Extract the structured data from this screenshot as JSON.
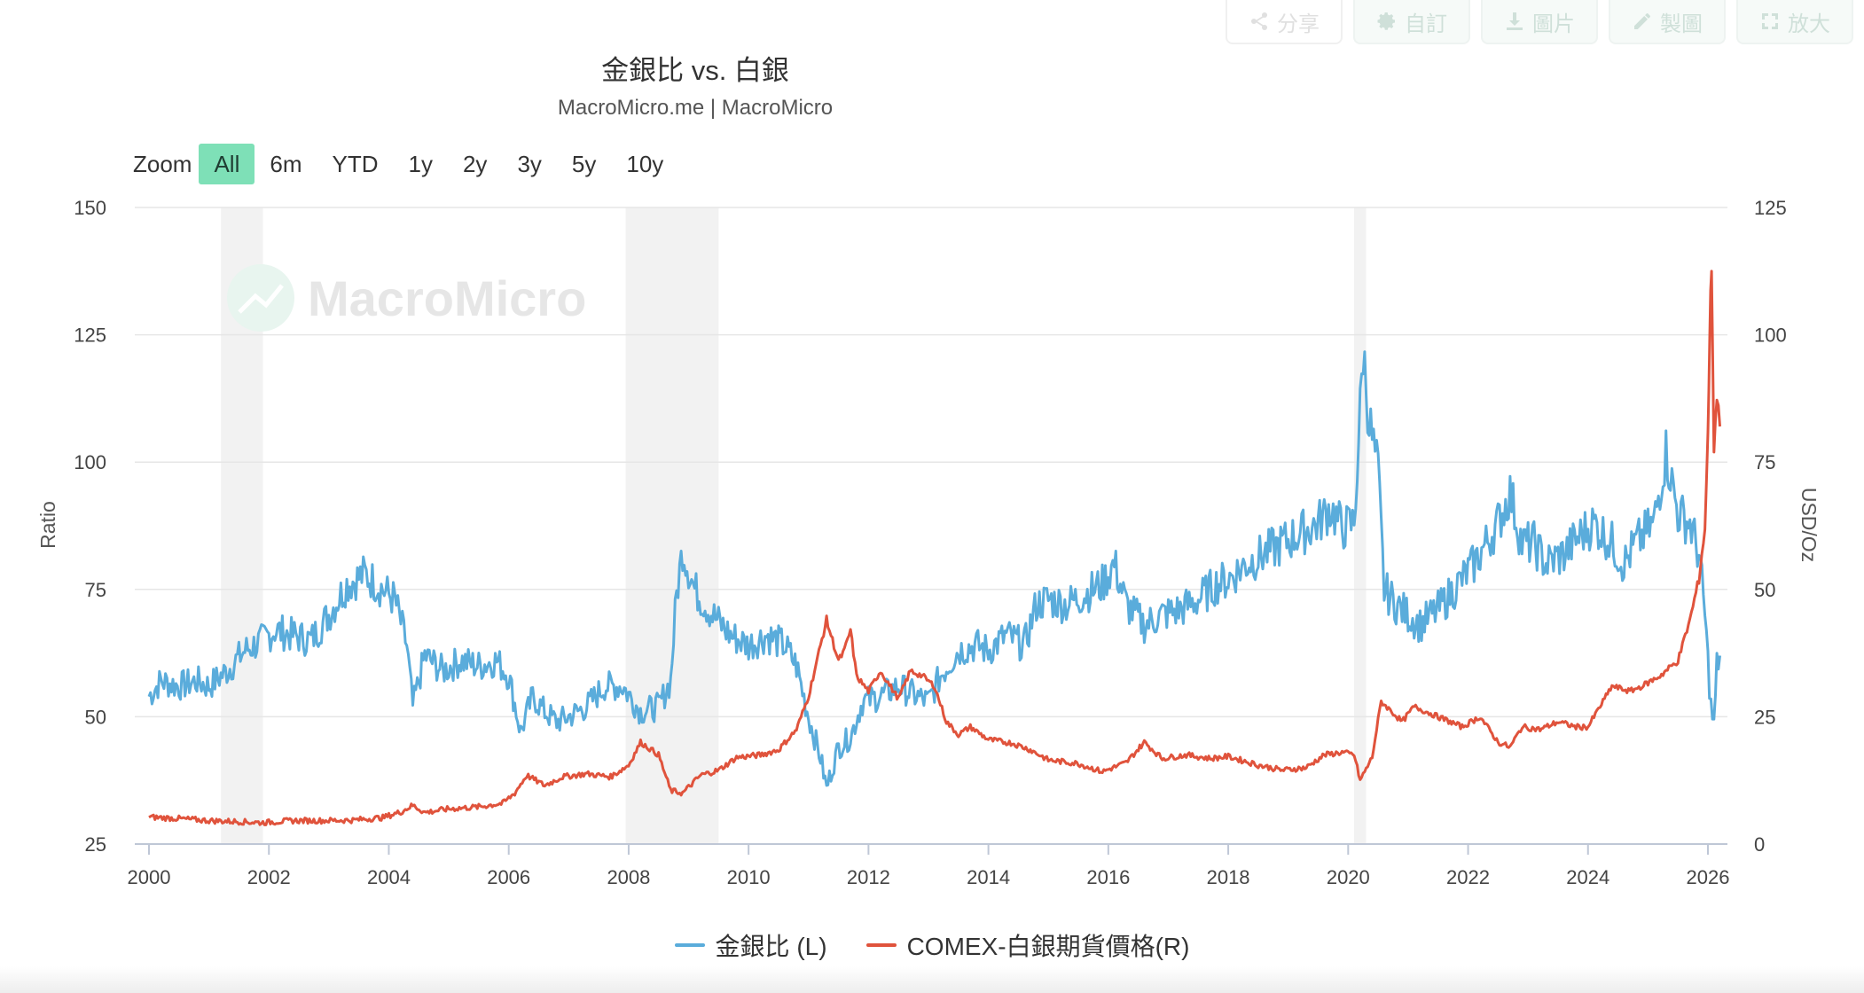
{
  "toolbar": {
    "share": {
      "label": "分享",
      "icon": "share-icon"
    },
    "customize": {
      "label": "自訂",
      "icon": "gear-icon"
    },
    "image": {
      "label": "圖片",
      "icon": "download-icon"
    },
    "draw": {
      "label": "製圖",
      "icon": "pencil-icon"
    },
    "expand": {
      "label": "放大",
      "icon": "expand-icon"
    }
  },
  "zoom": {
    "label": "Zoom",
    "options": [
      "All",
      "6m",
      "YTD",
      "1y",
      "2y",
      "3y",
      "5y",
      "10y"
    ],
    "selected": "All"
  },
  "watermark": "MacroMicro",
  "colors": {
    "ratio": "#5aacdb",
    "silver": "#e0533c",
    "recession_band": "#f2f2f2",
    "grid": "#e6e6e6",
    "zoom_active": "#7ee0b7"
  },
  "chart_data": {
    "type": "line",
    "title": "金銀比 vs. 白銀",
    "subtitle": "MacroMicro.me | MacroMicro",
    "x_ticks": [
      "2000",
      "2002",
      "2004",
      "2006",
      "2008",
      "2010",
      "2012",
      "2014",
      "2016",
      "2018",
      "2020",
      "2022",
      "2024",
      "2026"
    ],
    "y_left": {
      "label": "Ratio",
      "range": [
        25,
        150
      ],
      "ticks": [
        25,
        50,
        75,
        100,
        125,
        150
      ]
    },
    "y_right": {
      "label": "USD/Oz",
      "range": [
        0,
        125
      ],
      "ticks": [
        0,
        25,
        50,
        75,
        100,
        125
      ]
    },
    "grid": true,
    "legend_position": "bottom-center",
    "recession_bands": [
      [
        2001.2,
        2001.9
      ],
      [
        2007.95,
        2009.5
      ],
      [
        2020.1,
        2020.3
      ]
    ],
    "series": [
      {
        "name": "金銀比 (L)",
        "axis": "left",
        "points": [
          [
            2000.0,
            54
          ],
          [
            2000.2,
            57
          ],
          [
            2000.5,
            56
          ],
          [
            2000.8,
            57
          ],
          [
            2001.0,
            56
          ],
          [
            2001.3,
            59
          ],
          [
            2001.6,
            63
          ],
          [
            2001.9,
            65
          ],
          [
            2002.1,
            67
          ],
          [
            2002.4,
            66
          ],
          [
            2002.7,
            65
          ],
          [
            2003.0,
            70
          ],
          [
            2003.3,
            76
          ],
          [
            2003.6,
            78
          ],
          [
            2003.9,
            75
          ],
          [
            2004.1,
            73
          ],
          [
            2004.3,
            64
          ],
          [
            2004.4,
            52
          ],
          [
            2004.6,
            62
          ],
          [
            2004.9,
            59
          ],
          [
            2005.2,
            61
          ],
          [
            2005.5,
            60
          ],
          [
            2005.8,
            61
          ],
          [
            2006.0,
            58
          ],
          [
            2006.2,
            47
          ],
          [
            2006.4,
            54
          ],
          [
            2006.6,
            51
          ],
          [
            2006.8,
            49
          ],
          [
            2007.0,
            50
          ],
          [
            2007.3,
            52
          ],
          [
            2007.6,
            56
          ],
          [
            2007.9,
            56
          ],
          [
            2008.2,
            51
          ],
          [
            2008.5,
            52
          ],
          [
            2008.7,
            57
          ],
          [
            2008.8,
            74
          ],
          [
            2008.9,
            83
          ],
          [
            2009.1,
            75
          ],
          [
            2009.4,
            70
          ],
          [
            2009.7,
            66
          ],
          [
            2010.0,
            64
          ],
          [
            2010.3,
            66
          ],
          [
            2010.6,
            64
          ],
          [
            2010.8,
            60
          ],
          [
            2011.0,
            50
          ],
          [
            2011.2,
            42
          ],
          [
            2011.3,
            36
          ],
          [
            2011.5,
            44
          ],
          [
            2011.7,
            46
          ],
          [
            2011.9,
            53
          ],
          [
            2012.2,
            54
          ],
          [
            2012.5,
            56
          ],
          [
            2012.8,
            54
          ],
          [
            2013.0,
            53
          ],
          [
            2013.2,
            58
          ],
          [
            2013.5,
            63
          ],
          [
            2013.8,
            64
          ],
          [
            2014.0,
            63
          ],
          [
            2014.3,
            66
          ],
          [
            2014.6,
            64
          ],
          [
            2014.8,
            72
          ],
          [
            2015.0,
            73
          ],
          [
            2015.3,
            72
          ],
          [
            2015.6,
            74
          ],
          [
            2015.9,
            76
          ],
          [
            2016.1,
            80
          ],
          [
            2016.3,
            72
          ],
          [
            2016.6,
            68
          ],
          [
            2016.9,
            70
          ],
          [
            2017.2,
            71
          ],
          [
            2017.5,
            73
          ],
          [
            2017.8,
            76
          ],
          [
            2018.0,
            77
          ],
          [
            2018.3,
            80
          ],
          [
            2018.6,
            82
          ],
          [
            2018.9,
            84
          ],
          [
            2019.2,
            86
          ],
          [
            2019.5,
            88
          ],
          [
            2019.7,
            91
          ],
          [
            2019.9,
            87
          ],
          [
            2020.1,
            88
          ],
          [
            2020.2,
            110
          ],
          [
            2020.25,
            122
          ],
          [
            2020.35,
            108
          ],
          [
            2020.5,
            98
          ],
          [
            2020.6,
            75
          ],
          [
            2020.8,
            72
          ],
          [
            2021.0,
            70
          ],
          [
            2021.2,
            68
          ],
          [
            2021.5,
            71
          ],
          [
            2021.7,
            74
          ],
          [
            2021.9,
            77
          ],
          [
            2022.1,
            80
          ],
          [
            2022.3,
            84
          ],
          [
            2022.5,
            88
          ],
          [
            2022.7,
            94
          ],
          [
            2022.9,
            84
          ],
          [
            2023.1,
            84
          ],
          [
            2023.3,
            80
          ],
          [
            2023.6,
            82
          ],
          [
            2023.9,
            86
          ],
          [
            2024.1,
            88
          ],
          [
            2024.4,
            84
          ],
          [
            2024.6,
            80
          ],
          [
            2024.8,
            84
          ],
          [
            2025.1,
            88
          ],
          [
            2025.3,
            102
          ],
          [
            2025.5,
            90
          ],
          [
            2025.7,
            88
          ],
          [
            2025.85,
            82
          ],
          [
            2025.95,
            70
          ],
          [
            2026.05,
            52
          ],
          [
            2026.1,
            48
          ],
          [
            2026.15,
            60
          ],
          [
            2026.2,
            62
          ]
        ]
      },
      {
        "name": "COMEX-白銀期貨價格(R)",
        "axis": "right",
        "points": [
          [
            2000.0,
            5.3
          ],
          [
            2000.5,
            5.0
          ],
          [
            2001.0,
            4.6
          ],
          [
            2001.5,
            4.4
          ],
          [
            2001.9,
            4.2
          ],
          [
            2002.4,
            4.6
          ],
          [
            2002.9,
            4.6
          ],
          [
            2003.4,
            4.7
          ],
          [
            2003.9,
            5.2
          ],
          [
            2004.2,
            6.3
          ],
          [
            2004.4,
            7.6
          ],
          [
            2004.6,
            6.2
          ],
          [
            2005.0,
            6.9
          ],
          [
            2005.5,
            7.3
          ],
          [
            2005.9,
            8.0
          ],
          [
            2006.1,
            10.0
          ],
          [
            2006.3,
            13.5
          ],
          [
            2006.6,
            11.5
          ],
          [
            2006.9,
            13.2
          ],
          [
            2007.3,
            13.8
          ],
          [
            2007.7,
            13.2
          ],
          [
            2008.0,
            15.5
          ],
          [
            2008.2,
            20.0
          ],
          [
            2008.5,
            17.5
          ],
          [
            2008.7,
            10.5
          ],
          [
            2008.9,
            10.0
          ],
          [
            2009.2,
            13.5
          ],
          [
            2009.5,
            14.5
          ],
          [
            2009.8,
            17.0
          ],
          [
            2010.2,
            17.5
          ],
          [
            2010.5,
            18.5
          ],
          [
            2010.8,
            22.5
          ],
          [
            2011.0,
            29.0
          ],
          [
            2011.3,
            44.0
          ],
          [
            2011.5,
            36.0
          ],
          [
            2011.6,
            38.0
          ],
          [
            2011.7,
            42.0
          ],
          [
            2011.8,
            33.0
          ],
          [
            2012.0,
            30.0
          ],
          [
            2012.2,
            34.0
          ],
          [
            2012.5,
            28.5
          ],
          [
            2012.7,
            34.0
          ],
          [
            2012.9,
            33.0
          ],
          [
            2013.1,
            31.0
          ],
          [
            2013.3,
            24.0
          ],
          [
            2013.5,
            21.5
          ],
          [
            2013.7,
            23.0
          ],
          [
            2014.0,
            20.5
          ],
          [
            2014.4,
            19.8
          ],
          [
            2014.7,
            18.5
          ],
          [
            2015.0,
            16.5
          ],
          [
            2015.5,
            15.8
          ],
          [
            2015.9,
            14.2
          ],
          [
            2016.3,
            16.0
          ],
          [
            2016.6,
            20.0
          ],
          [
            2016.9,
            16.8
          ],
          [
            2017.3,
            17.5
          ],
          [
            2017.7,
            16.8
          ],
          [
            2018.0,
            17.2
          ],
          [
            2018.5,
            15.5
          ],
          [
            2018.9,
            14.5
          ],
          [
            2019.3,
            15.0
          ],
          [
            2019.6,
            17.5
          ],
          [
            2019.9,
            18.0
          ],
          [
            2020.1,
            17.5
          ],
          [
            2020.2,
            12.5
          ],
          [
            2020.4,
            17.0
          ],
          [
            2020.55,
            28.0
          ],
          [
            2020.9,
            24.0
          ],
          [
            2021.1,
            27.0
          ],
          [
            2021.5,
            25.0
          ],
          [
            2021.9,
            23.0
          ],
          [
            2022.2,
            25.0
          ],
          [
            2022.5,
            20.0
          ],
          [
            2022.7,
            19.0
          ],
          [
            2022.9,
            23.0
          ],
          [
            2023.2,
            22.5
          ],
          [
            2023.5,
            24.0
          ],
          [
            2023.8,
            23.0
          ],
          [
            2024.0,
            23.0
          ],
          [
            2024.2,
            27.0
          ],
          [
            2024.4,
            31.0
          ],
          [
            2024.7,
            30.0
          ],
          [
            2024.9,
            31.0
          ],
          [
            2025.2,
            33.0
          ],
          [
            2025.5,
            36.0
          ],
          [
            2025.7,
            44.0
          ],
          [
            2025.85,
            52.0
          ],
          [
            2025.95,
            62.0
          ],
          [
            2026.0,
            80.0
          ],
          [
            2026.03,
            100.0
          ],
          [
            2026.06,
            114.0
          ],
          [
            2026.1,
            78.0
          ],
          [
            2026.15,
            88.0
          ],
          [
            2026.2,
            82.0
          ]
        ]
      }
    ]
  }
}
